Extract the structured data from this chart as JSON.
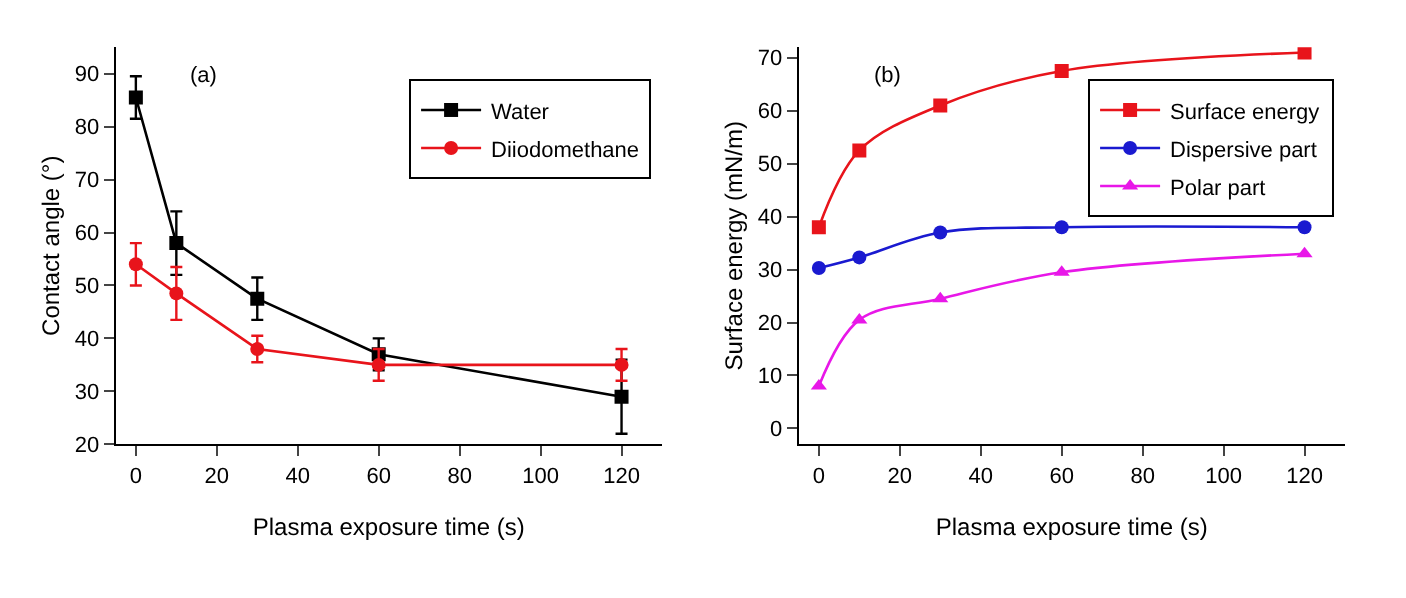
{
  "chart_data": [
    {
      "type": "line",
      "annotations": [
        "(a)"
      ],
      "xlabel": "Plasma exposure time (s)",
      "ylabel": "Contact angle (°)",
      "x": [
        0,
        10,
        30,
        60,
        120
      ],
      "xlim": [
        -5,
        130
      ],
      "xticks": [
        0,
        20,
        40,
        60,
        80,
        100,
        120
      ],
      "ylim": [
        20,
        95
      ],
      "yticks": [
        20,
        30,
        40,
        50,
        60,
        70,
        80,
        90
      ],
      "legend": "top right",
      "series": [
        {
          "name": "Water",
          "color": "#000000",
          "values": [
            85.5,
            58,
            47.5,
            37,
            29
          ],
          "errors": [
            4,
            6,
            4,
            3,
            7
          ],
          "marker": "square"
        },
        {
          "name": "Diiodomethane",
          "color": "#e8141b",
          "values": [
            54,
            48.5,
            38,
            35,
            35
          ],
          "errors": [
            4,
            5,
            2.5,
            3,
            3
          ],
          "marker": "circle"
        }
      ]
    },
    {
      "type": "line",
      "annotations": [
        "(b)"
      ],
      "xlabel": "Plasma exposure time (s)",
      "ylabel": "Surface energy (mN/m)",
      "x": [
        0,
        10,
        30,
        60,
        120
      ],
      "xlim": [
        -5,
        130
      ],
      "xticks": [
        0,
        20,
        40,
        60,
        80,
        100,
        120
      ],
      "ylim": [
        -3,
        72
      ],
      "yticks": [
        0,
        10,
        20,
        30,
        40,
        50,
        60,
        70
      ],
      "legend": "top right",
      "series": [
        {
          "name": "Surface energy",
          "color": "#e8141b",
          "values": [
            38,
            52.5,
            61,
            67.5,
            71
          ],
          "marker": "square"
        },
        {
          "name": "Dispersive part",
          "color": "#1a1ad0",
          "values": [
            30.3,
            32.3,
            37,
            38,
            38
          ],
          "marker": "circle"
        },
        {
          "name": "Polar part",
          "color": "#e817e8",
          "values": [
            8,
            20.5,
            24.5,
            29.5,
            33
          ],
          "marker": "triangle"
        }
      ]
    }
  ]
}
